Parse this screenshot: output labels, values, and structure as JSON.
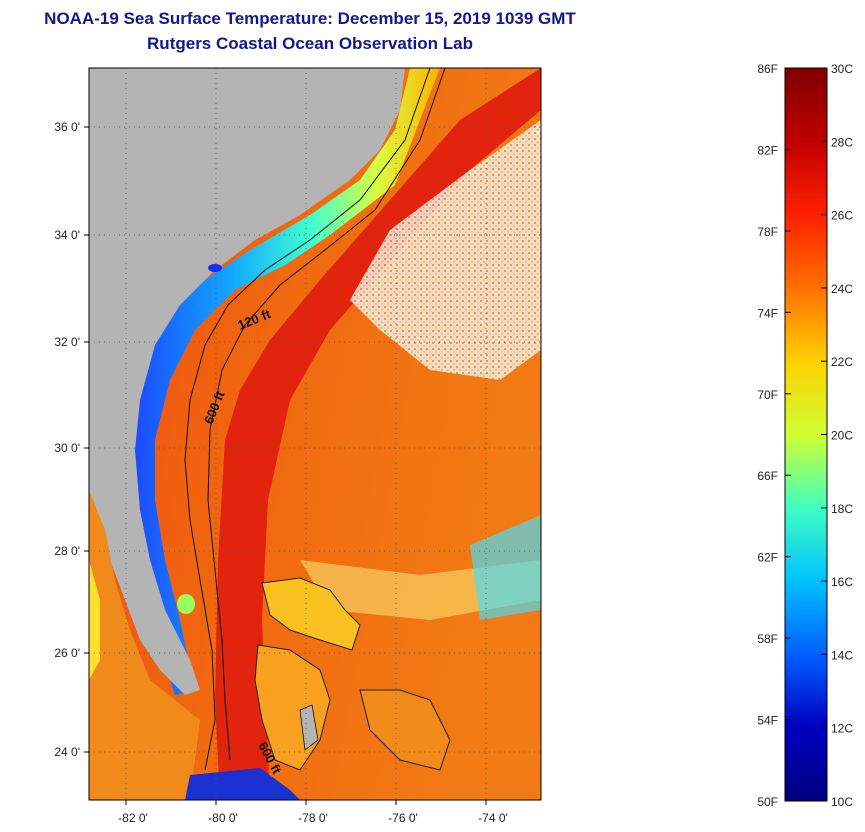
{
  "header": {
    "title": "NOAA-19 Sea Surface Temperature:  December 15, 2019 1039 GMT",
    "subtitle": "Rutgers Coastal Ocean Observation Lab"
  },
  "map": {
    "lat_ticks": [
      "36 0'",
      "34 0'",
      "32 0'",
      "30 0'",
      "28 0'",
      "26 0'",
      "24 0'"
    ],
    "lon_ticks": [
      "-82 0'",
      "-80 0'",
      "-78 0'",
      "-76 0'",
      "-74 0'"
    ],
    "contour_labels": [
      "120 ft",
      "600 ft",
      "600 ft"
    ],
    "colors": {
      "land": "#b4b4b4",
      "ocean_warm": "#e8301c",
      "gulf_stream": "#e01a10"
    }
  },
  "colorbar": {
    "fahrenheit": [
      "86F",
      "82F",
      "78F",
      "74F",
      "70F",
      "66F",
      "62F",
      "58F",
      "54F",
      "50F"
    ],
    "celsius": [
      "30C",
      "28C",
      "26C",
      "24C",
      "22C",
      "20C",
      "18C",
      "16C",
      "14C",
      "12C",
      "10C"
    ],
    "stops": [
      "#800000",
      "#c00000",
      "#ff2000",
      "#ff7000",
      "#ffd000",
      "#d0ff30",
      "#40ffc0",
      "#00c0ff",
      "#0060ff",
      "#0000c0",
      "#000080"
    ]
  }
}
